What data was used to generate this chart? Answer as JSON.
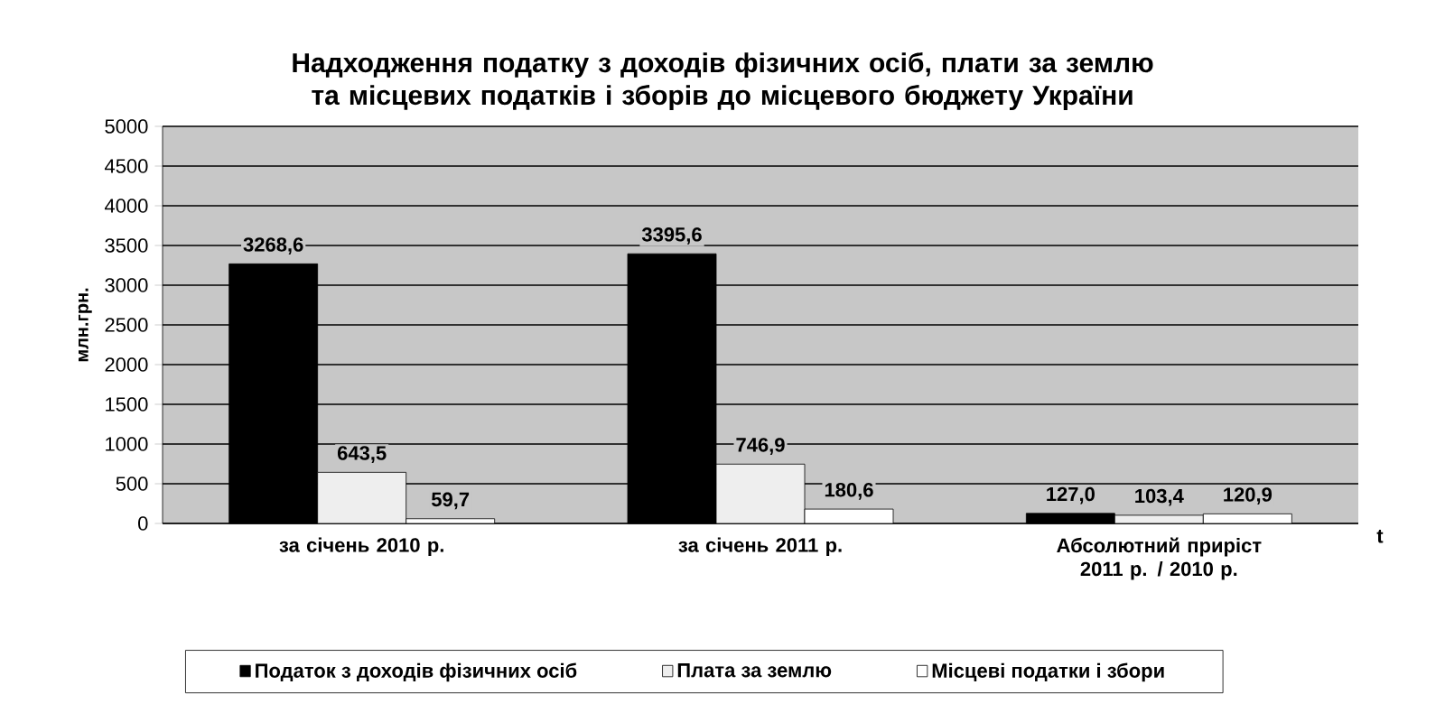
{
  "chart_data": {
    "type": "bar",
    "title": "Надходження податку з доходів фізичних осіб, плати за землю та місцевих податків і зборів до місцевого бюджету України",
    "ylabel": "млн.грн.",
    "xlabel": "t",
    "categories": [
      "за січень 2010 р.",
      "за січень 2011 р.",
      "Абсолютний приріст 2011 р. / 2010 р."
    ],
    "series": [
      {
        "name": "Податок з доходів фізичних осіб",
        "color": "#000000",
        "values": [
          3268.6,
          3395.6,
          127.0
        ],
        "value_labels": [
          "3268,6",
          "3395,6",
          "127,0"
        ]
      },
      {
        "name": "Плата за землю",
        "color": "#eeeeee",
        "values": [
          643.5,
          746.9,
          103.4
        ],
        "value_labels": [
          "643,5",
          "746,9",
          "103,4"
        ]
      },
      {
        "name": "Місцеві податки і збори",
        "color": "#ffffff",
        "values": [
          59.7,
          180.6,
          120.9
        ],
        "value_labels": [
          "59,7",
          "180,6",
          "120,9"
        ]
      }
    ],
    "ylim": [
      0,
      5000
    ],
    "yticks": [
      0,
      500,
      1000,
      1500,
      2000,
      2500,
      3000,
      3500,
      4000,
      4500,
      5000
    ],
    "grid": "y",
    "legend": "bottom"
  }
}
